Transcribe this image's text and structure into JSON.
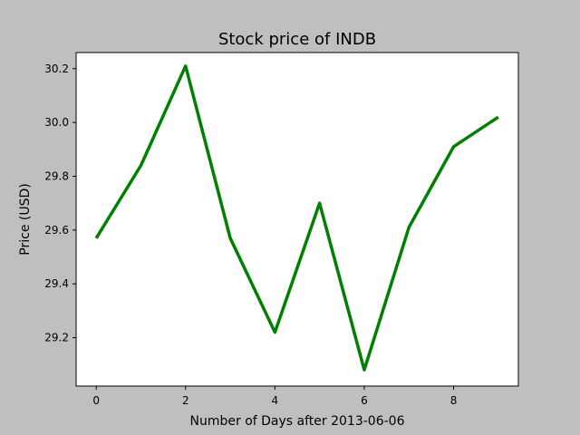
{
  "chart_data": {
    "type": "line",
    "title": "Stock price of INDB",
    "xlabel": "Number of Days after 2013-06-06",
    "ylabel": "Price (USD)",
    "x": [
      0,
      1,
      2,
      3,
      4,
      5,
      6,
      7,
      8,
      9
    ],
    "series": [
      {
        "values": [
          29.57,
          29.84,
          30.21,
          29.57,
          29.22,
          29.7,
          29.08,
          29.61,
          29.91,
          30.02
        ],
        "color": "#008000"
      }
    ],
    "xlim": [
      -0.45,
      9.45
    ],
    "ylim": [
      29.02,
      30.26
    ],
    "xticks": [
      0,
      2,
      4,
      6,
      8
    ],
    "yticks": [
      29.2,
      29.4,
      29.6,
      29.8,
      30.0,
      30.2
    ],
    "xtick_labels": [
      "0",
      "2",
      "4",
      "6",
      "8"
    ],
    "ytick_labels": [
      "29.2",
      "29.4",
      "29.6",
      "29.8",
      "30.0",
      "30.2"
    ],
    "grid": false,
    "background": "#bfbfbf",
    "plot_background": "#ffffff"
  }
}
